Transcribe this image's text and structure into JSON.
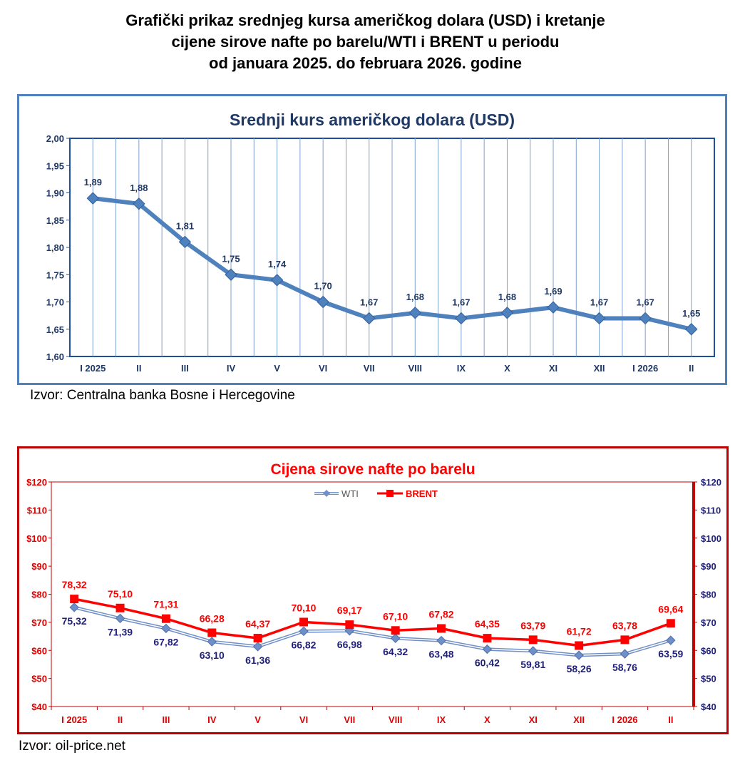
{
  "page_title_lines": [
    "Grafički prikaz srednjeg kursa američkog dolara (USD) i kretanje",
    "cijene sirove nafte po barelu/WTI i BRENT u periodu",
    "od januara 2025. do februara 2026. godine"
  ],
  "sources": {
    "usd": "Izvor: Centralna banka Bosne i Hercegovine",
    "oil": "Izvor: oil-price.net"
  },
  "colors": {
    "usd_line": "#4f81bd",
    "usd_title": "#1f3864",
    "wti_line": "#6f8fc9",
    "wti_labels": "#1f1f7a",
    "brent_line": "#ff0000",
    "oil_title": "#ff0000"
  },
  "chart_data": [
    {
      "type": "line",
      "title": "Srednji kurs američkog dolara (USD)",
      "categories": [
        "I 2025",
        "II",
        "III",
        "IV",
        "V",
        "VI",
        "VII",
        "VIII",
        "IX",
        "X",
        "XI",
        "XII",
        "I 2026",
        "II"
      ],
      "series": [
        {
          "values": [
            1.89,
            1.88,
            1.81,
            1.75,
            1.74,
            1.7,
            1.67,
            1.68,
            1.67,
            1.68,
            1.69,
            1.67,
            1.67,
            1.65
          ]
        }
      ],
      "data_labels": [
        "1,89",
        "1,88",
        "1,81",
        "1,75",
        "1,74",
        "1,70",
        "1,67",
        "1,68",
        "1,67",
        "1,68",
        "1,69",
        "1,67",
        "1,67",
        "1,65"
      ],
      "ylim": [
        1.6,
        2.0
      ],
      "yticks": [
        1.6,
        1.65,
        1.7,
        1.75,
        1.8,
        1.85,
        1.9,
        1.95,
        2.0
      ],
      "ytick_labels": [
        "1,60",
        "1,65",
        "1,70",
        "1,75",
        "1,80",
        "1,85",
        "1,90",
        "1,95",
        "2,00"
      ],
      "grid": "vertical",
      "legend": "none"
    },
    {
      "type": "line",
      "title": "Cijena sirove nafte po barelu",
      "categories": [
        "I 2025",
        "II",
        "III",
        "IV",
        "V",
        "VI",
        "VII",
        "VIII",
        "IX",
        "X",
        "XI",
        "XII",
        "I 2026",
        "II"
      ],
      "series": [
        {
          "name": "WTI",
          "values": [
            75.32,
            71.39,
            67.82,
            63.1,
            61.36,
            66.82,
            66.98,
            64.32,
            63.48,
            60.42,
            59.81,
            58.26,
            58.76,
            63.59
          ],
          "labels": [
            "75,32",
            "71,39",
            "67,82",
            "63,10",
            "61,36",
            "66,82",
            "66,98",
            "64,32",
            "63,48",
            "60,42",
            "59,81",
            "58,26",
            "58,76",
            "63,59"
          ]
        },
        {
          "name": "BRENT",
          "values": [
            78.32,
            75.1,
            71.31,
            66.28,
            64.37,
            70.1,
            69.17,
            67.1,
            67.82,
            64.35,
            63.79,
            61.72,
            63.78,
            69.64
          ],
          "labels": [
            "78,32",
            "75,10",
            "71,31",
            "66,28",
            "64,37",
            "70,10",
            "69,17",
            "67,10",
            "67,82",
            "64,35",
            "63,79",
            "61,72",
            "63,78",
            "69,64"
          ]
        }
      ],
      "ylim": [
        40,
        120
      ],
      "yticks": [
        40,
        50,
        60,
        70,
        80,
        90,
        100,
        110,
        120
      ],
      "ytick_labels": [
        "$40",
        "$50",
        "$60",
        "$70",
        "$80",
        "$90",
        "$100",
        "$110",
        "$120"
      ],
      "secondary_y_axis": true,
      "legend": "top-center"
    }
  ]
}
